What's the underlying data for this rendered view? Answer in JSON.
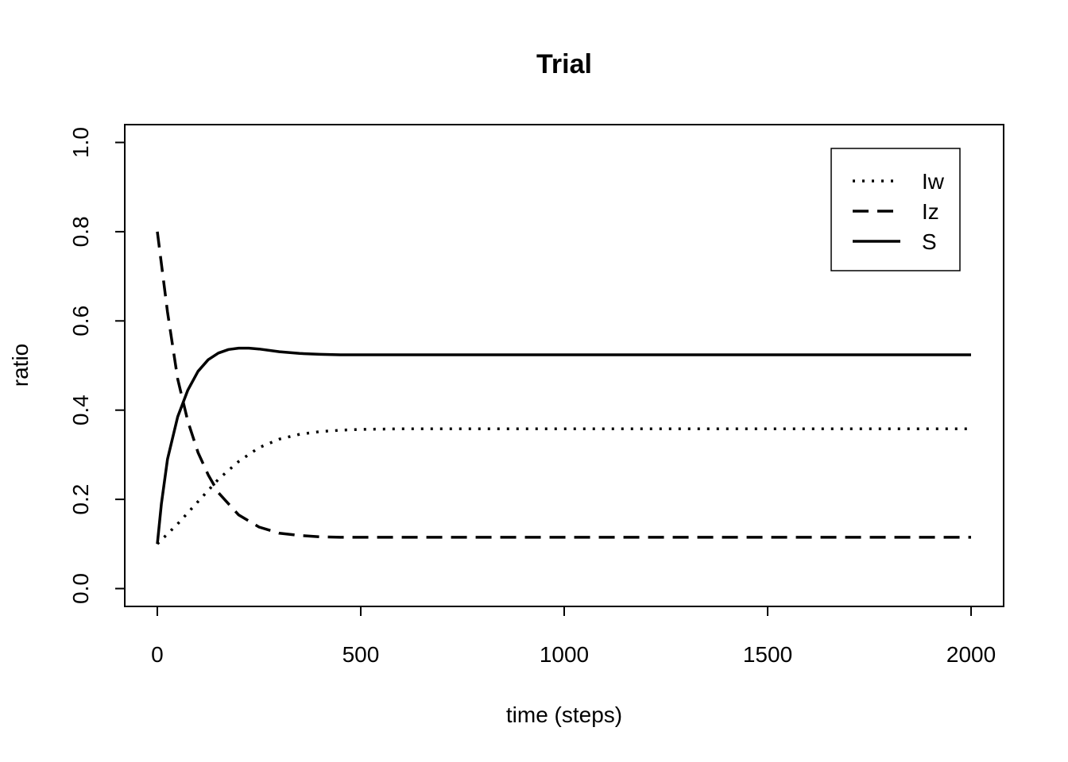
{
  "chart_data": {
    "type": "line",
    "title": "Trial",
    "xlabel": "time (steps)",
    "ylabel": "ratio",
    "xlim": [
      -80,
      2080
    ],
    "ylim": [
      -0.04,
      1.04
    ],
    "xticks": [
      0,
      500,
      1000,
      1500,
      2000
    ],
    "xtick_labels": [
      "0",
      "500",
      "1000",
      "1500",
      "2000"
    ],
    "yticks": [
      0,
      0.2,
      0.4,
      0.6,
      0.8,
      1
    ],
    "ytick_labels": [
      "0.0",
      "0.2",
      "0.4",
      "0.6",
      "0.8",
      "1.0"
    ],
    "grid": false,
    "legend_position": "top-right",
    "series": [
      {
        "name": "Iw",
        "line_style": "dotted",
        "x": [
          0,
          50,
          100,
          150,
          200,
          250,
          300,
          350,
          400,
          450,
          500,
          600,
          800,
          1000,
          1500,
          2000
        ],
        "y": [
          0.1,
          0.145,
          0.195,
          0.245,
          0.285,
          0.316,
          0.335,
          0.346,
          0.352,
          0.355,
          0.357,
          0.358,
          0.358,
          0.358,
          0.358,
          0.358
        ]
      },
      {
        "name": "Iz",
        "line_style": "dashed",
        "x": [
          0,
          25,
          50,
          75,
          100,
          125,
          150,
          200,
          250,
          300,
          350,
          400,
          450,
          500,
          600,
          800,
          1000,
          1500,
          2000
        ],
        "y": [
          0.8,
          0.62,
          0.47,
          0.375,
          0.305,
          0.255,
          0.215,
          0.165,
          0.138,
          0.124,
          0.119,
          0.116,
          0.115,
          0.115,
          0.115,
          0.115,
          0.115,
          0.115,
          0.115
        ]
      },
      {
        "name": "S",
        "line_style": "solid",
        "x": [
          0,
          10,
          25,
          50,
          75,
          100,
          125,
          150,
          175,
          200,
          225,
          250,
          300,
          350,
          400,
          450,
          500,
          600,
          800,
          1000,
          1500,
          2000
        ],
        "y": [
          0.1,
          0.19,
          0.29,
          0.385,
          0.445,
          0.487,
          0.513,
          0.528,
          0.536,
          0.539,
          0.539,
          0.537,
          0.531,
          0.527,
          0.525,
          0.524,
          0.524,
          0.524,
          0.524,
          0.524,
          0.524,
          0.524
        ]
      }
    ]
  }
}
